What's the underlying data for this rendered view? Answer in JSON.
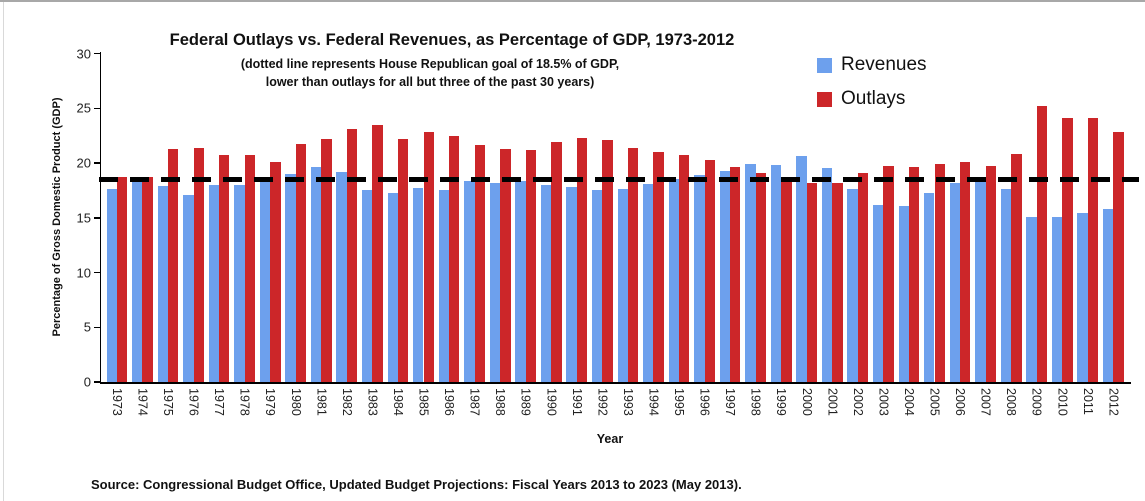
{
  "page": {
    "source_note": "Source: Congressional Budget Office, Updated Budget Projections: Fiscal Years 2013 to 2023 (May 2013)."
  },
  "chart_data": {
    "type": "bar",
    "title": "Federal Outlays vs. Federal Revenues, as Percentage of GDP, 1973-2012",
    "subtitle_line1": "(dotted line represents House Republican goal of 18.5% of GDP,",
    "subtitle_line2": "lower than outlays for all but three of the past 30 years)",
    "xlabel": "Year",
    "ylabel": "Percentage of Gross Domestic Product (GDP)",
    "ylim": [
      0,
      30
    ],
    "yticks": [
      0,
      5,
      10,
      15,
      20,
      25,
      30
    ],
    "grid": false,
    "legend_position": "top-right",
    "goal_line": {
      "value": 18.5,
      "style": "dashed",
      "color": "#000000",
      "label": "House Republican goal of 18.5% of GDP"
    },
    "categories": [
      "1973",
      "1974",
      "1975",
      "1976",
      "1977",
      "1978",
      "1979",
      "1980",
      "1981",
      "1982",
      "1983",
      "1984",
      "1985",
      "1986",
      "1987",
      "1988",
      "1989",
      "1990",
      "1991",
      "1992",
      "1993",
      "1994",
      "1995",
      "1996",
      "1997",
      "1998",
      "1999",
      "2000",
      "2001",
      "2002",
      "2003",
      "2004",
      "2005",
      "2006",
      "2007",
      "2008",
      "2009",
      "2010",
      "2011",
      "2012"
    ],
    "series": [
      {
        "name": "Revenues",
        "color": "#6DA0ED",
        "values": [
          17.6,
          18.3,
          17.9,
          17.1,
          18.0,
          18.0,
          18.5,
          19.0,
          19.6,
          19.2,
          17.5,
          17.3,
          17.7,
          17.5,
          18.4,
          18.2,
          18.4,
          18.0,
          17.8,
          17.5,
          17.6,
          18.1,
          18.5,
          18.9,
          19.3,
          19.9,
          19.8,
          20.6,
          19.5,
          17.6,
          16.2,
          16.1,
          17.3,
          18.2,
          18.5,
          17.6,
          15.1,
          15.1,
          15.4,
          15.8
        ]
      },
      {
        "name": "Outlays",
        "color": "#CC2629",
        "values": [
          18.7,
          18.7,
          21.3,
          21.4,
          20.7,
          20.7,
          20.1,
          21.7,
          22.2,
          23.1,
          23.5,
          22.2,
          22.8,
          22.5,
          21.6,
          21.3,
          21.2,
          21.9,
          22.3,
          22.1,
          21.4,
          21.0,
          20.7,
          20.3,
          19.6,
          19.1,
          18.5,
          18.2,
          18.2,
          19.1,
          19.7,
          19.6,
          19.9,
          20.1,
          19.7,
          20.8,
          25.2,
          24.1,
          24.1,
          22.8
        ]
      }
    ]
  }
}
